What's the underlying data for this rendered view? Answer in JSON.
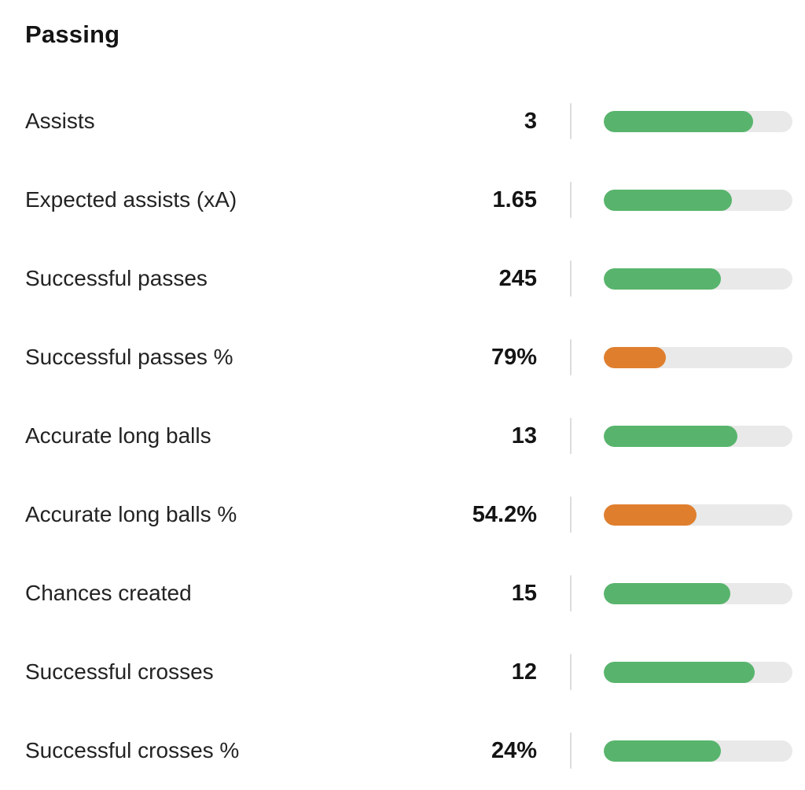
{
  "title": "Passing",
  "colors": {
    "green": "#58B46C",
    "orange": "#DF7F2E",
    "track": "#E9E9E9",
    "divider": "#DCDCDC",
    "text": "#1D1D1D"
  },
  "rows": [
    {
      "label": "Assists",
      "value": "3",
      "percent": 79,
      "color": "green"
    },
    {
      "label": "Expected assists (xA)",
      "value": "1.65",
      "percent": 68,
      "color": "green"
    },
    {
      "label": "Successful passes",
      "value": "245",
      "percent": 62,
      "color": "green"
    },
    {
      "label": "Successful passes %",
      "value": "79%",
      "percent": 33,
      "color": "orange"
    },
    {
      "label": "Accurate long balls",
      "value": "13",
      "percent": 71,
      "color": "green"
    },
    {
      "label": "Accurate long balls %",
      "value": "54.2%",
      "percent": 49,
      "color": "orange"
    },
    {
      "label": "Chances created",
      "value": "15",
      "percent": 67,
      "color": "green"
    },
    {
      "label": "Successful crosses",
      "value": "12",
      "percent": 80,
      "color": "green"
    },
    {
      "label": "Successful crosses %",
      "value": "24%",
      "percent": 62,
      "color": "green"
    }
  ],
  "chart_data": {
    "type": "bar",
    "orientation": "horizontal",
    "title": "Passing",
    "categories": [
      "Assists",
      "Expected assists (xA)",
      "Successful passes",
      "Successful passes %",
      "Accurate long balls",
      "Accurate long balls %",
      "Chances created",
      "Successful crosses",
      "Successful crosses %"
    ],
    "values": [
      3,
      1.65,
      245,
      79,
      13,
      54.2,
      15,
      12,
      24
    ],
    "value_labels": [
      "3",
      "1.65",
      "245",
      "79%",
      "13",
      "54.2%",
      "15",
      "12",
      "24%"
    ],
    "bar_fill_percent": [
      79,
      68,
      62,
      33,
      71,
      49,
      67,
      80,
      62
    ],
    "bar_colors": [
      "green",
      "green",
      "green",
      "orange",
      "green",
      "orange",
      "green",
      "green",
      "green"
    ],
    "xlabel": "",
    "ylabel": "",
    "legend": "none",
    "grid": false
  }
}
